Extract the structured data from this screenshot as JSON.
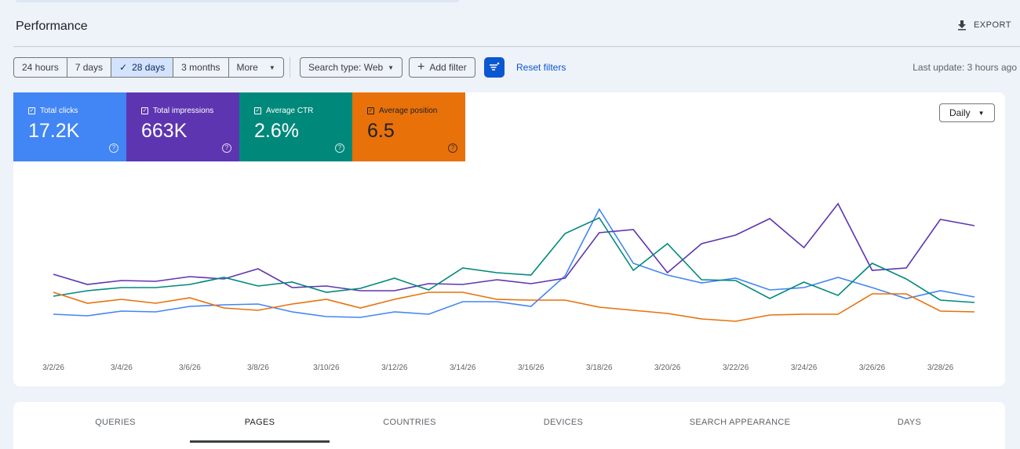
{
  "header": {
    "title": "Performance",
    "export": "EXPORT"
  },
  "filters": {
    "ranges": [
      "24 hours",
      "7 days",
      "28 days",
      "3 months",
      "More"
    ],
    "selected_range": 2,
    "search_type": "Search type: Web",
    "add_filter": "Add filter",
    "reset": "Reset filters",
    "last_update": "Last update: 3 hours ago"
  },
  "totals": [
    "17.2K",
    "663K",
    "2.6%",
    "6.5"
  ],
  "granularity": "Daily",
  "chart_data": {
    "type": "line",
    "categories": [
      "3/2/26",
      null,
      "3/4/26",
      null,
      "3/6/26",
      null,
      "3/8/26",
      null,
      "3/10/26",
      null,
      "3/12/26",
      null,
      "3/14/26",
      null,
      "3/16/26",
      null,
      "3/18/26",
      null,
      "3/20/26",
      null,
      "3/22/26",
      null,
      "3/24/26",
      null,
      "3/26/26",
      null,
      "3/28/26",
      null
    ],
    "ylim": [
      0,
      240
    ],
    "series": [
      {
        "name": "Total clicks",
        "color": "#4285f4",
        "values": [
          59,
          57,
          63,
          62,
          69,
          71,
          72,
          62,
          56,
          55,
          62,
          59,
          75,
          75,
          69,
          108,
          193,
          124,
          109,
          99,
          105,
          90,
          93,
          106,
          93,
          79,
          89,
          81
        ]
      },
      {
        "name": "Total impressions",
        "color": "#5e35b1",
        "values": [
          110,
          97,
          102,
          101,
          107,
          104,
          117,
          93,
          95,
          89,
          89,
          98,
          97,
          103,
          98,
          105,
          163,
          167,
          112,
          149,
          160,
          181,
          144,
          200,
          115,
          118,
          180,
          172
        ]
      },
      {
        "name": "Average CTR",
        "color": "#00897b",
        "values": [
          82,
          89,
          93,
          93,
          97,
          106,
          95,
          100,
          87,
          92,
          105,
          90,
          118,
          112,
          109,
          162,
          182,
          115,
          149,
          103,
          102,
          79,
          100,
          83,
          124,
          104,
          77,
          74
        ]
      },
      {
        "name": "Average position",
        "color": "#e8710a",
        "values": [
          87,
          73,
          78,
          73,
          80,
          67,
          64,
          72,
          78,
          67,
          78,
          87,
          87,
          78,
          77,
          77,
          68,
          64,
          60,
          53,
          50,
          58,
          59,
          59,
          85,
          85,
          63,
          62
        ]
      }
    ]
  },
  "tabs": [
    "QUERIES",
    "PAGES",
    "COUNTRIES",
    "DEVICES",
    "SEARCH APPEARANCE",
    "DAYS"
  ],
  "active_tab": 1
}
